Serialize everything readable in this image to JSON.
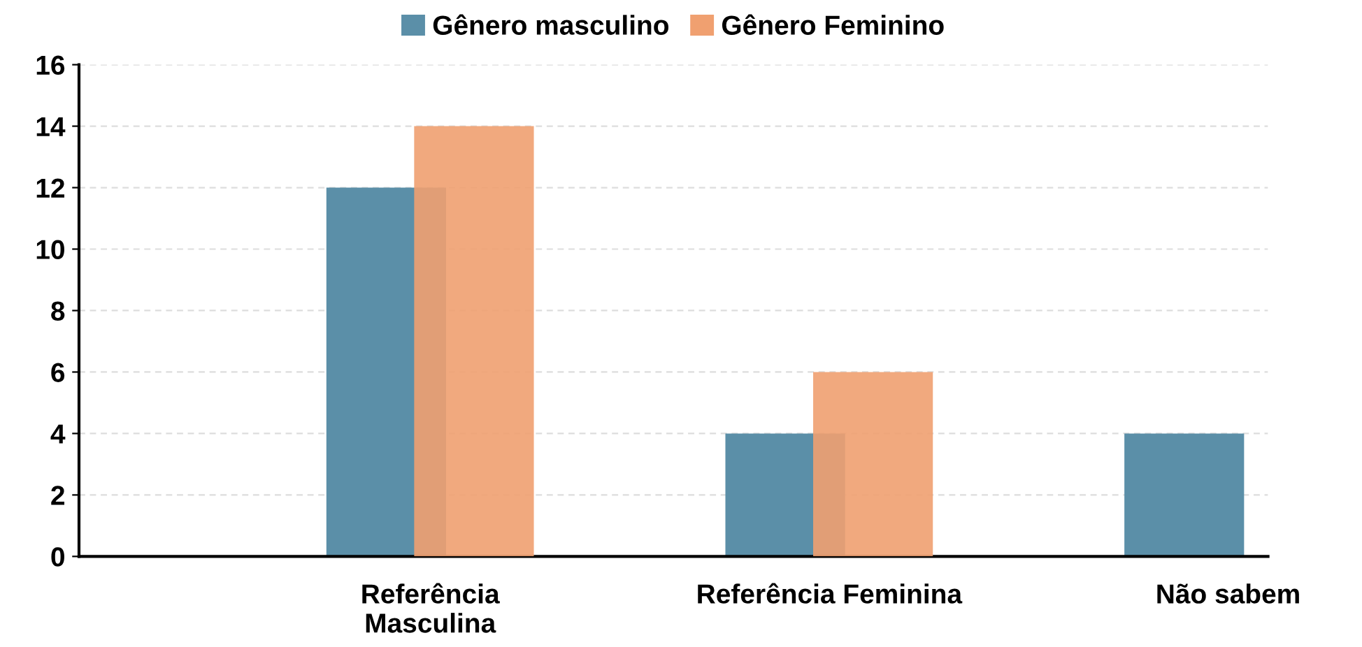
{
  "chart_data": {
    "type": "bar",
    "categories": [
      "Referência\nMasculina",
      "Referência Feminina",
      "Não sabem"
    ],
    "series": [
      {
        "name": "Gênero masculino",
        "color": "#5b8fa8",
        "values": [
          12,
          4,
          4
        ]
      },
      {
        "name": "Gênero Feminino",
        "color": "#f0a070",
        "values": [
          14,
          6,
          null
        ]
      }
    ],
    "ylim": [
      0,
      16
    ],
    "yticks": [
      0,
      2,
      4,
      6,
      8,
      10,
      12,
      14,
      16
    ],
    "grid": "y",
    "legend": "top"
  }
}
